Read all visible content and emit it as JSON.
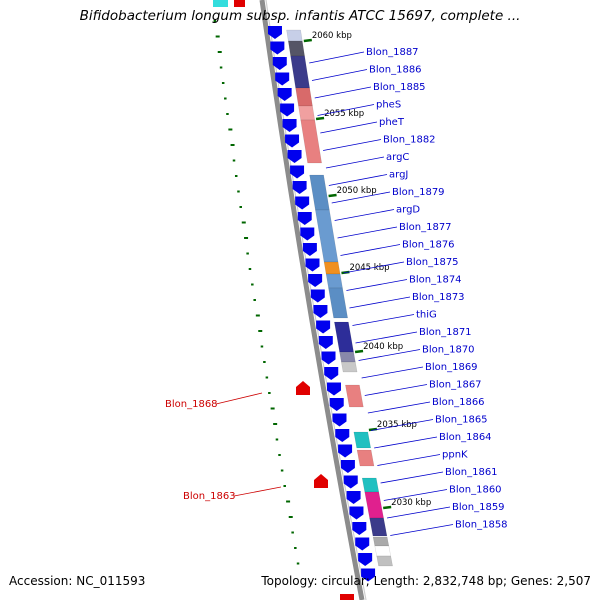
{
  "title": "Bifidobacterium longum subsp. infantis ATCC 15697, complete ...",
  "footer": {
    "accession": "Accession: NC_011593",
    "stats": "Topology: circular; Length: 2,832,748 bp; Genes: 2,507"
  },
  "colors": {
    "backbone": "#8c8c8c",
    "gene_arrow": "#0000ee",
    "label_blue": "#0000cc",
    "label_red": "#cc0000",
    "dot_track": "#006600",
    "tick": "#006600"
  },
  "kbp_ticks": [
    {
      "label": "2060 kbp",
      "kbp": 2060
    },
    {
      "label": "2055 kbp",
      "kbp": 2055
    },
    {
      "label": "2050 kbp",
      "kbp": 2050
    },
    {
      "label": "2045 kbp",
      "kbp": 2045
    },
    {
      "label": "2040 kbp",
      "kbp": 2040
    },
    {
      "label": "2035 kbp",
      "kbp": 2035
    },
    {
      "label": "2030 kbp",
      "kbp": 2030
    }
  ],
  "forward_labels": [
    "Blon_1887",
    "Blon_1886",
    "Blon_1885",
    "pheS",
    "pheT",
    "Blon_1882",
    "argC",
    "argJ",
    "Blon_1879",
    "argD",
    "Blon_1877",
    "Blon_1876",
    "Blon_1875",
    "Blon_1874",
    "Blon_1873",
    "thiG",
    "Blon_1871",
    "Blon_1870",
    "Blon_1869",
    "Blon_1867",
    "Blon_1866",
    "Blon_1865",
    "Blon_1864",
    "ppnK",
    "Blon_1861",
    "Blon_1860",
    "Blon_1859",
    "Blon_1858"
  ],
  "reverse_labels": [
    "Blon_1868",
    "Blon_1863"
  ]
}
